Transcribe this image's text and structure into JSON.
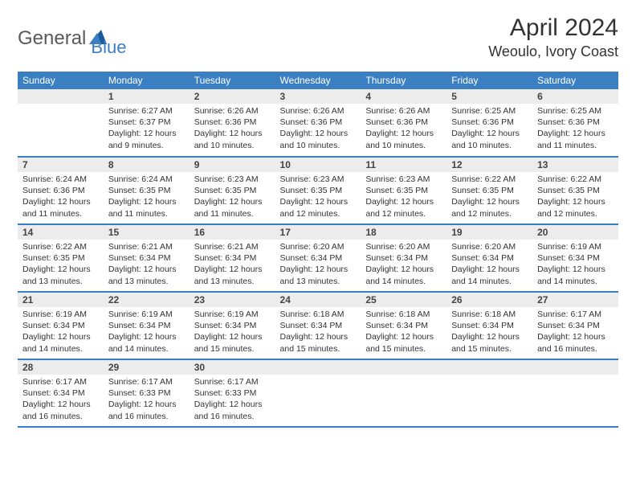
{
  "brand": {
    "part1": "General",
    "part2": "Blue"
  },
  "title": "April 2024",
  "location": "Weoulo, Ivory Coast",
  "colors": {
    "header_bg": "#3a7fc2",
    "header_text": "#ffffff",
    "daynum_bg": "#ececec",
    "row_border": "#3a7fc2",
    "text": "#333333",
    "brand_gray": "#58595b",
    "brand_blue": "#3a7fc2",
    "page_bg": "#ffffff"
  },
  "weekdays": [
    "Sunday",
    "Monday",
    "Tuesday",
    "Wednesday",
    "Thursday",
    "Friday",
    "Saturday"
  ],
  "weeks": [
    [
      null,
      {
        "n": "1",
        "sr": "6:27 AM",
        "ss": "6:37 PM",
        "dl": "12 hours and 9 minutes."
      },
      {
        "n": "2",
        "sr": "6:26 AM",
        "ss": "6:36 PM",
        "dl": "12 hours and 10 minutes."
      },
      {
        "n": "3",
        "sr": "6:26 AM",
        "ss": "6:36 PM",
        "dl": "12 hours and 10 minutes."
      },
      {
        "n": "4",
        "sr": "6:26 AM",
        "ss": "6:36 PM",
        "dl": "12 hours and 10 minutes."
      },
      {
        "n": "5",
        "sr": "6:25 AM",
        "ss": "6:36 PM",
        "dl": "12 hours and 10 minutes."
      },
      {
        "n": "6",
        "sr": "6:25 AM",
        "ss": "6:36 PM",
        "dl": "12 hours and 11 minutes."
      }
    ],
    [
      {
        "n": "7",
        "sr": "6:24 AM",
        "ss": "6:36 PM",
        "dl": "12 hours and 11 minutes."
      },
      {
        "n": "8",
        "sr": "6:24 AM",
        "ss": "6:35 PM",
        "dl": "12 hours and 11 minutes."
      },
      {
        "n": "9",
        "sr": "6:23 AM",
        "ss": "6:35 PM",
        "dl": "12 hours and 11 minutes."
      },
      {
        "n": "10",
        "sr": "6:23 AM",
        "ss": "6:35 PM",
        "dl": "12 hours and 12 minutes."
      },
      {
        "n": "11",
        "sr": "6:23 AM",
        "ss": "6:35 PM",
        "dl": "12 hours and 12 minutes."
      },
      {
        "n": "12",
        "sr": "6:22 AM",
        "ss": "6:35 PM",
        "dl": "12 hours and 12 minutes."
      },
      {
        "n": "13",
        "sr": "6:22 AM",
        "ss": "6:35 PM",
        "dl": "12 hours and 12 minutes."
      }
    ],
    [
      {
        "n": "14",
        "sr": "6:22 AM",
        "ss": "6:35 PM",
        "dl": "12 hours and 13 minutes."
      },
      {
        "n": "15",
        "sr": "6:21 AM",
        "ss": "6:34 PM",
        "dl": "12 hours and 13 minutes."
      },
      {
        "n": "16",
        "sr": "6:21 AM",
        "ss": "6:34 PM",
        "dl": "12 hours and 13 minutes."
      },
      {
        "n": "17",
        "sr": "6:20 AM",
        "ss": "6:34 PM",
        "dl": "12 hours and 13 minutes."
      },
      {
        "n": "18",
        "sr": "6:20 AM",
        "ss": "6:34 PM",
        "dl": "12 hours and 14 minutes."
      },
      {
        "n": "19",
        "sr": "6:20 AM",
        "ss": "6:34 PM",
        "dl": "12 hours and 14 minutes."
      },
      {
        "n": "20",
        "sr": "6:19 AM",
        "ss": "6:34 PM",
        "dl": "12 hours and 14 minutes."
      }
    ],
    [
      {
        "n": "21",
        "sr": "6:19 AM",
        "ss": "6:34 PM",
        "dl": "12 hours and 14 minutes."
      },
      {
        "n": "22",
        "sr": "6:19 AM",
        "ss": "6:34 PM",
        "dl": "12 hours and 14 minutes."
      },
      {
        "n": "23",
        "sr": "6:19 AM",
        "ss": "6:34 PM",
        "dl": "12 hours and 15 minutes."
      },
      {
        "n": "24",
        "sr": "6:18 AM",
        "ss": "6:34 PM",
        "dl": "12 hours and 15 minutes."
      },
      {
        "n": "25",
        "sr": "6:18 AM",
        "ss": "6:34 PM",
        "dl": "12 hours and 15 minutes."
      },
      {
        "n": "26",
        "sr": "6:18 AM",
        "ss": "6:34 PM",
        "dl": "12 hours and 15 minutes."
      },
      {
        "n": "27",
        "sr": "6:17 AM",
        "ss": "6:34 PM",
        "dl": "12 hours and 16 minutes."
      }
    ],
    [
      {
        "n": "28",
        "sr": "6:17 AM",
        "ss": "6:34 PM",
        "dl": "12 hours and 16 minutes."
      },
      {
        "n": "29",
        "sr": "6:17 AM",
        "ss": "6:33 PM",
        "dl": "12 hours and 16 minutes."
      },
      {
        "n": "30",
        "sr": "6:17 AM",
        "ss": "6:33 PM",
        "dl": "12 hours and 16 minutes."
      },
      null,
      null,
      null,
      null
    ]
  ],
  "labels": {
    "sunrise": "Sunrise:",
    "sunset": "Sunset:",
    "daylight": "Daylight:"
  }
}
